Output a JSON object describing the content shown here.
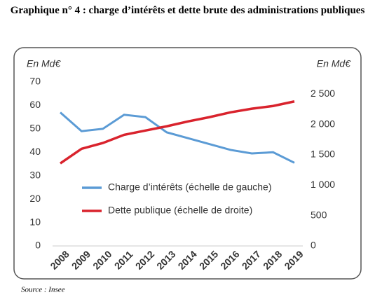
{
  "chart_data": {
    "type": "line",
    "title": "Graphique n° 4 : charge d’intérêts et dette brute des administrations publiques",
    "y_label": "En Md€",
    "y2_label": "En Md€",
    "categories": [
      "2008",
      "2009",
      "2010",
      "2011",
      "2012",
      "2013",
      "2014",
      "2015",
      "2016",
      "2017",
      "2018",
      "2019"
    ],
    "series": [
      {
        "name": "Charge d’intérêts (échelle de gauche)",
        "color": "#5b9bd5",
        "values": [
          57,
          49,
          50,
          56,
          55,
          48.5,
          46,
          43.5,
          41,
          39.5,
          40,
          35.5
        ]
      },
      {
        "name": "Dette publique (échelle de droite)",
        "color": "#d9232d",
        "axis": "y2",
        "values": [
          1360,
          1600,
          1695,
          1830,
          1900,
          1970,
          2050,
          2120,
          2200,
          2260,
          2305,
          2380
        ]
      }
    ],
    "ylim": [
      0,
      70
    ],
    "yticks": [
      0,
      10,
      20,
      30,
      40,
      50,
      60,
      70
    ],
    "y2lim": [
      0,
      2700
    ],
    "y2ticks": [
      0,
      500,
      {
        "value": 1000,
        "label": "1 000"
      },
      {
        "value": 1500,
        "label": "1 500"
      },
      {
        "value": 2000,
        "label": "2 000"
      },
      {
        "value": 2500,
        "label": "2 500"
      }
    ],
    "source": "Source : Insee"
  }
}
